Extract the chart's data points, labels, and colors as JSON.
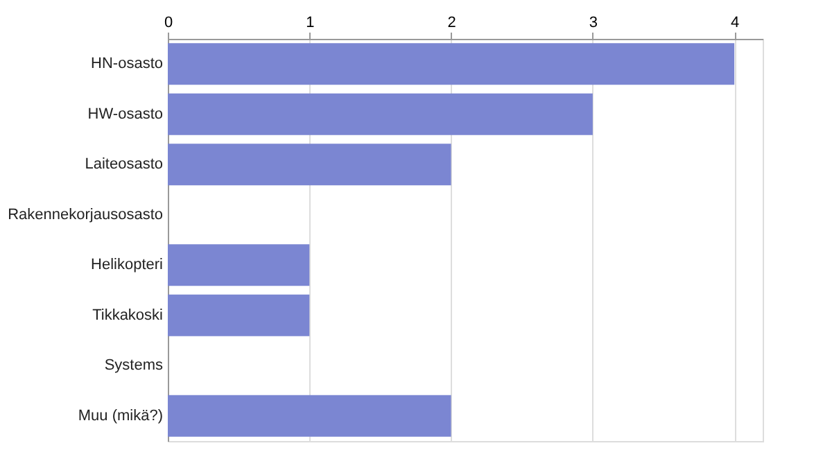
{
  "chart_data": {
    "type": "bar",
    "orientation": "horizontal",
    "categories": [
      "HN-osasto",
      "HW-osasto",
      "Laiteosasto",
      "Rakennekorjausosasto",
      "Helikopteri",
      "Tikkakoski",
      "Systems",
      "Muu (mikä?)"
    ],
    "values": [
      4,
      3,
      2,
      0,
      1,
      1,
      0,
      2
    ],
    "color": "#7b86d2",
    "xlim": [
      0,
      4.2
    ],
    "xticks": [
      0,
      1,
      2,
      3,
      4
    ],
    "grid": "x"
  }
}
